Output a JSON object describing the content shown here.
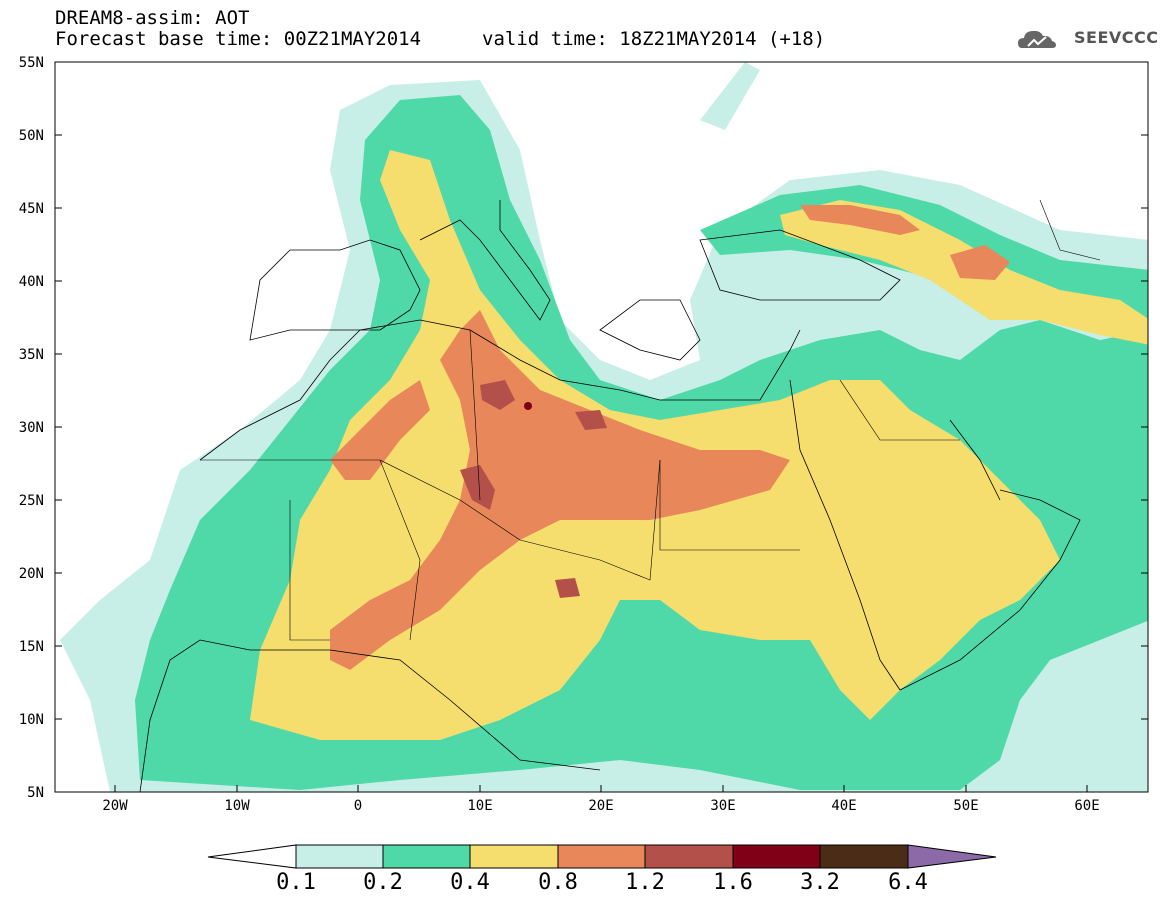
{
  "title": {
    "line1": "DREAM8-assim: AOT",
    "line2_left": "Forecast base time: 00Z21MAY2014",
    "line2_right": "valid time: 18Z21MAY2014 (+18)"
  },
  "logo": {
    "text": "SEEVCCC",
    "icon": "cloud-icon"
  },
  "axes": {
    "lat_labels": [
      "55N",
      "50N",
      "45N",
      "40N",
      "35N",
      "30N",
      "25N",
      "20N",
      "15N",
      "10N",
      "5N"
    ],
    "lon_labels": [
      "20W",
      "10W",
      "0",
      "10E",
      "20E",
      "30E",
      "40E",
      "50E",
      "60E"
    ]
  },
  "colorbar": {
    "labels": [
      "0.1",
      "0.2",
      "0.4",
      "0.8",
      "1.2",
      "1.6",
      "3.2",
      "6.4"
    ],
    "colors": [
      "#ffffff",
      "#c8eee8",
      "#4fd8a8",
      "#f5dd6e",
      "#e8875a",
      "#b4504a",
      "#800018",
      "#4b2c16",
      "#8c6aa8"
    ]
  },
  "palette": {
    "lev1": "#c8eee8",
    "lev2": "#4fd8a8",
    "lev3": "#f5dd6e",
    "lev4": "#e8875a",
    "lev5": "#b4504a",
    "lev6": "#800018",
    "coast": "#000000"
  }
}
